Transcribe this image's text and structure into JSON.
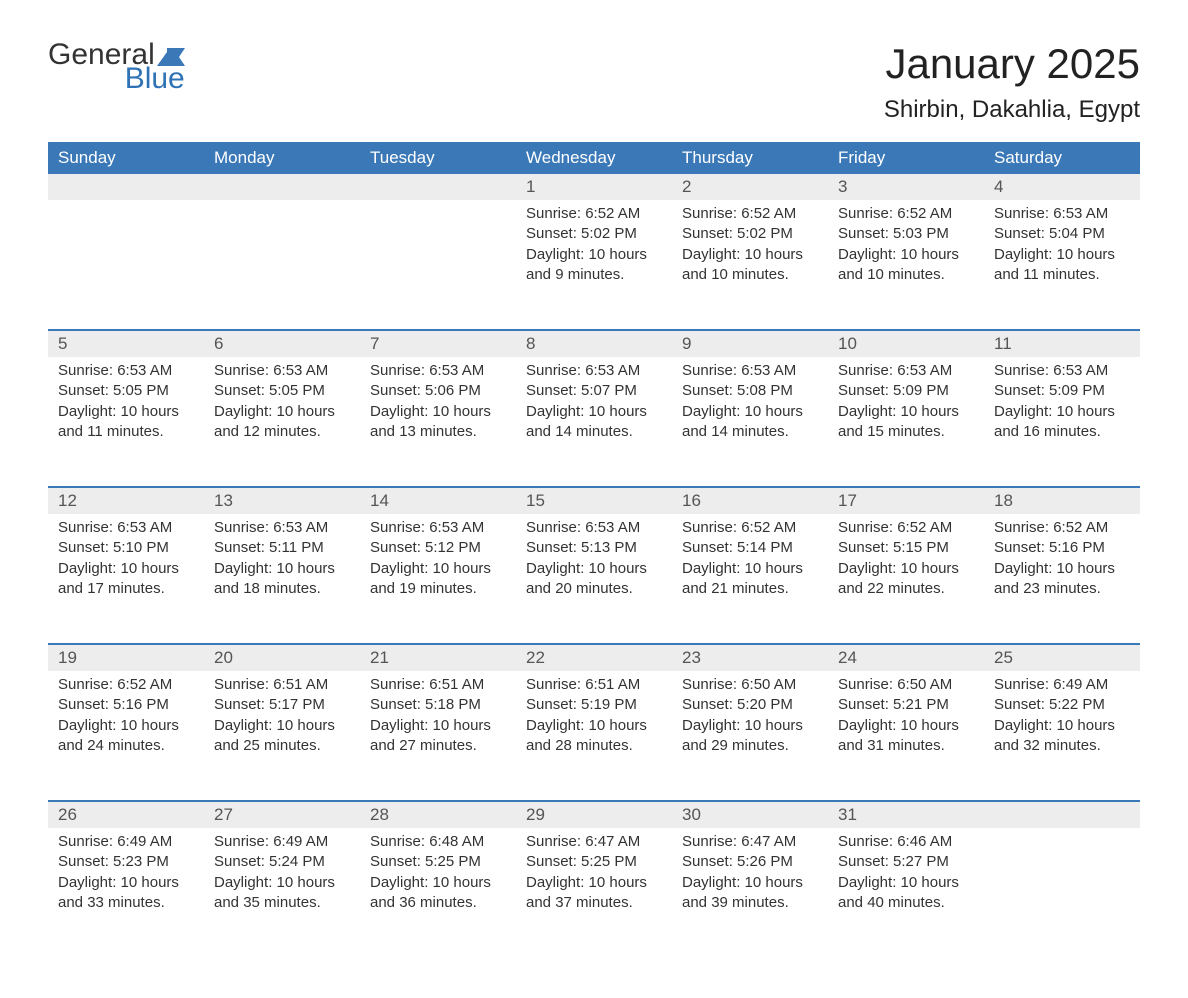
{
  "logo": {
    "text_general": "General",
    "text_blue": "Blue",
    "icon_color": "#3a78b8"
  },
  "header": {
    "month_title": "January 2025",
    "location": "Shirbin, Dakahlia, Egypt"
  },
  "colors": {
    "header_bg": "#3a78b8",
    "header_text": "#ffffff",
    "daynum_bg": "#ededed",
    "body_text": "#333333",
    "title_text": "#222222",
    "logo_blue": "#2f73b6",
    "page_bg": "#ffffff",
    "row_separator": "#3a78b8"
  },
  "typography": {
    "month_title_fontsize": 42,
    "location_fontsize": 24,
    "weekday_fontsize": 17,
    "daynum_fontsize": 17,
    "daycontent_fontsize": 15,
    "font_family": "Arial"
  },
  "layout": {
    "columns": 7,
    "rows": 5,
    "first_day_column_index": 3
  },
  "weekdays": [
    "Sunday",
    "Monday",
    "Tuesday",
    "Wednesday",
    "Thursday",
    "Friday",
    "Saturday"
  ],
  "days": [
    {
      "n": "1",
      "sunrise": "Sunrise: 6:52 AM",
      "sunset": "Sunset: 5:02 PM",
      "daylight1": "Daylight: 10 hours",
      "daylight2": "and 9 minutes."
    },
    {
      "n": "2",
      "sunrise": "Sunrise: 6:52 AM",
      "sunset": "Sunset: 5:02 PM",
      "daylight1": "Daylight: 10 hours",
      "daylight2": "and 10 minutes."
    },
    {
      "n": "3",
      "sunrise": "Sunrise: 6:52 AM",
      "sunset": "Sunset: 5:03 PM",
      "daylight1": "Daylight: 10 hours",
      "daylight2": "and 10 minutes."
    },
    {
      "n": "4",
      "sunrise": "Sunrise: 6:53 AM",
      "sunset": "Sunset: 5:04 PM",
      "daylight1": "Daylight: 10 hours",
      "daylight2": "and 11 minutes."
    },
    {
      "n": "5",
      "sunrise": "Sunrise: 6:53 AM",
      "sunset": "Sunset: 5:05 PM",
      "daylight1": "Daylight: 10 hours",
      "daylight2": "and 11 minutes."
    },
    {
      "n": "6",
      "sunrise": "Sunrise: 6:53 AM",
      "sunset": "Sunset: 5:05 PM",
      "daylight1": "Daylight: 10 hours",
      "daylight2": "and 12 minutes."
    },
    {
      "n": "7",
      "sunrise": "Sunrise: 6:53 AM",
      "sunset": "Sunset: 5:06 PM",
      "daylight1": "Daylight: 10 hours",
      "daylight2": "and 13 minutes."
    },
    {
      "n": "8",
      "sunrise": "Sunrise: 6:53 AM",
      "sunset": "Sunset: 5:07 PM",
      "daylight1": "Daylight: 10 hours",
      "daylight2": "and 14 minutes."
    },
    {
      "n": "9",
      "sunrise": "Sunrise: 6:53 AM",
      "sunset": "Sunset: 5:08 PM",
      "daylight1": "Daylight: 10 hours",
      "daylight2": "and 14 minutes."
    },
    {
      "n": "10",
      "sunrise": "Sunrise: 6:53 AM",
      "sunset": "Sunset: 5:09 PM",
      "daylight1": "Daylight: 10 hours",
      "daylight2": "and 15 minutes."
    },
    {
      "n": "11",
      "sunrise": "Sunrise: 6:53 AM",
      "sunset": "Sunset: 5:09 PM",
      "daylight1": "Daylight: 10 hours",
      "daylight2": "and 16 minutes."
    },
    {
      "n": "12",
      "sunrise": "Sunrise: 6:53 AM",
      "sunset": "Sunset: 5:10 PM",
      "daylight1": "Daylight: 10 hours",
      "daylight2": "and 17 minutes."
    },
    {
      "n": "13",
      "sunrise": "Sunrise: 6:53 AM",
      "sunset": "Sunset: 5:11 PM",
      "daylight1": "Daylight: 10 hours",
      "daylight2": "and 18 minutes."
    },
    {
      "n": "14",
      "sunrise": "Sunrise: 6:53 AM",
      "sunset": "Sunset: 5:12 PM",
      "daylight1": "Daylight: 10 hours",
      "daylight2": "and 19 minutes."
    },
    {
      "n": "15",
      "sunrise": "Sunrise: 6:53 AM",
      "sunset": "Sunset: 5:13 PM",
      "daylight1": "Daylight: 10 hours",
      "daylight2": "and 20 minutes."
    },
    {
      "n": "16",
      "sunrise": "Sunrise: 6:52 AM",
      "sunset": "Sunset: 5:14 PM",
      "daylight1": "Daylight: 10 hours",
      "daylight2": "and 21 minutes."
    },
    {
      "n": "17",
      "sunrise": "Sunrise: 6:52 AM",
      "sunset": "Sunset: 5:15 PM",
      "daylight1": "Daylight: 10 hours",
      "daylight2": "and 22 minutes."
    },
    {
      "n": "18",
      "sunrise": "Sunrise: 6:52 AM",
      "sunset": "Sunset: 5:16 PM",
      "daylight1": "Daylight: 10 hours",
      "daylight2": "and 23 minutes."
    },
    {
      "n": "19",
      "sunrise": "Sunrise: 6:52 AM",
      "sunset": "Sunset: 5:16 PM",
      "daylight1": "Daylight: 10 hours",
      "daylight2": "and 24 minutes."
    },
    {
      "n": "20",
      "sunrise": "Sunrise: 6:51 AM",
      "sunset": "Sunset: 5:17 PM",
      "daylight1": "Daylight: 10 hours",
      "daylight2": "and 25 minutes."
    },
    {
      "n": "21",
      "sunrise": "Sunrise: 6:51 AM",
      "sunset": "Sunset: 5:18 PM",
      "daylight1": "Daylight: 10 hours",
      "daylight2": "and 27 minutes."
    },
    {
      "n": "22",
      "sunrise": "Sunrise: 6:51 AM",
      "sunset": "Sunset: 5:19 PM",
      "daylight1": "Daylight: 10 hours",
      "daylight2": "and 28 minutes."
    },
    {
      "n": "23",
      "sunrise": "Sunrise: 6:50 AM",
      "sunset": "Sunset: 5:20 PM",
      "daylight1": "Daylight: 10 hours",
      "daylight2": "and 29 minutes."
    },
    {
      "n": "24",
      "sunrise": "Sunrise: 6:50 AM",
      "sunset": "Sunset: 5:21 PM",
      "daylight1": "Daylight: 10 hours",
      "daylight2": "and 31 minutes."
    },
    {
      "n": "25",
      "sunrise": "Sunrise: 6:49 AM",
      "sunset": "Sunset: 5:22 PM",
      "daylight1": "Daylight: 10 hours",
      "daylight2": "and 32 minutes."
    },
    {
      "n": "26",
      "sunrise": "Sunrise: 6:49 AM",
      "sunset": "Sunset: 5:23 PM",
      "daylight1": "Daylight: 10 hours",
      "daylight2": "and 33 minutes."
    },
    {
      "n": "27",
      "sunrise": "Sunrise: 6:49 AM",
      "sunset": "Sunset: 5:24 PM",
      "daylight1": "Daylight: 10 hours",
      "daylight2": "and 35 minutes."
    },
    {
      "n": "28",
      "sunrise": "Sunrise: 6:48 AM",
      "sunset": "Sunset: 5:25 PM",
      "daylight1": "Daylight: 10 hours",
      "daylight2": "and 36 minutes."
    },
    {
      "n": "29",
      "sunrise": "Sunrise: 6:47 AM",
      "sunset": "Sunset: 5:25 PM",
      "daylight1": "Daylight: 10 hours",
      "daylight2": "and 37 minutes."
    },
    {
      "n": "30",
      "sunrise": "Sunrise: 6:47 AM",
      "sunset": "Sunset: 5:26 PM",
      "daylight1": "Daylight: 10 hours",
      "daylight2": "and 39 minutes."
    },
    {
      "n": "31",
      "sunrise": "Sunrise: 6:46 AM",
      "sunset": "Sunset: 5:27 PM",
      "daylight1": "Daylight: 10 hours",
      "daylight2": "and 40 minutes."
    }
  ]
}
